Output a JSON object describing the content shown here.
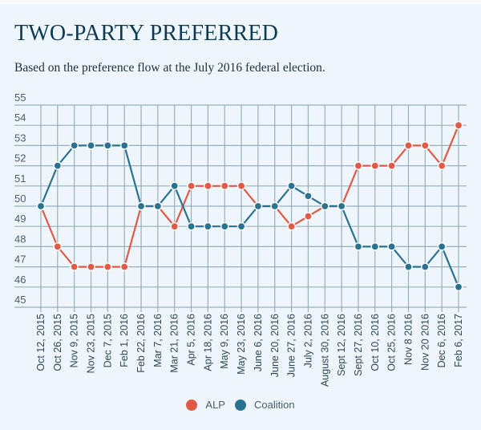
{
  "title": "TWO-PARTY PREFERRED",
  "subtitle": "Based on the preference flow at the July 2016 federal election.",
  "colors": {
    "background": "#eef6fc",
    "grid": "#8aa3b3",
    "ALP": "#e05a47",
    "Coalition": "#2a7390"
  },
  "chart_data": {
    "type": "line",
    "title": "TWO-PARTY PREFERRED",
    "subtitle": "Based on the preference flow at the July 2016 federal election.",
    "xlabel": "",
    "ylabel": "",
    "ylim": [
      45,
      55
    ],
    "yticks": [
      45,
      46,
      47,
      48,
      49,
      50,
      51,
      52,
      53,
      54,
      55
    ],
    "grid": true,
    "legend_position": "bottom-center",
    "categories": [
      "Oct 12, 2015",
      "Oct 26, 2015",
      "Nov 9, 2015",
      "Nov 23, 2015",
      "Dec 7, 2015",
      "Feb 1, 2016",
      "Feb 22, 2016",
      "Mar 7, 2016",
      "Mar 21, 2016",
      "Apr 5, 2016",
      "Apr 18, 2016",
      "May 9, 2016",
      "May 23, 2016",
      "June 6, 2016",
      "June 20, 2016",
      "June 27, 2016",
      "July 2, 2016",
      "August 30, 2016",
      "Sept 12, 2016",
      "Sept 27, 2016",
      "Oct 10, 2016",
      "Oct 25, 2016",
      "Nov 8 2016",
      "Nov 20 2016",
      "Dec 6, 2016",
      "Feb 6, 2017"
    ],
    "series": [
      {
        "name": "ALP",
        "color": "#e05a47",
        "values": [
          50,
          48,
          47,
          47,
          47,
          47,
          50,
          50,
          49,
          51,
          51,
          51,
          51,
          50,
          50,
          49,
          49.5,
          50,
          50,
          52,
          52,
          52,
          53,
          53,
          52,
          54
        ]
      },
      {
        "name": "Coalition",
        "color": "#2a7390",
        "values": [
          50,
          52,
          53,
          53,
          53,
          53,
          50,
          50,
          51,
          49,
          49,
          49,
          49,
          50,
          50,
          51,
          50.5,
          50,
          50,
          48,
          48,
          48,
          47,
          47,
          48,
          46
        ]
      }
    ]
  },
  "legend": [
    {
      "label": "ALP",
      "color": "#e05a47"
    },
    {
      "label": "Coalition",
      "color": "#2a7390"
    }
  ]
}
